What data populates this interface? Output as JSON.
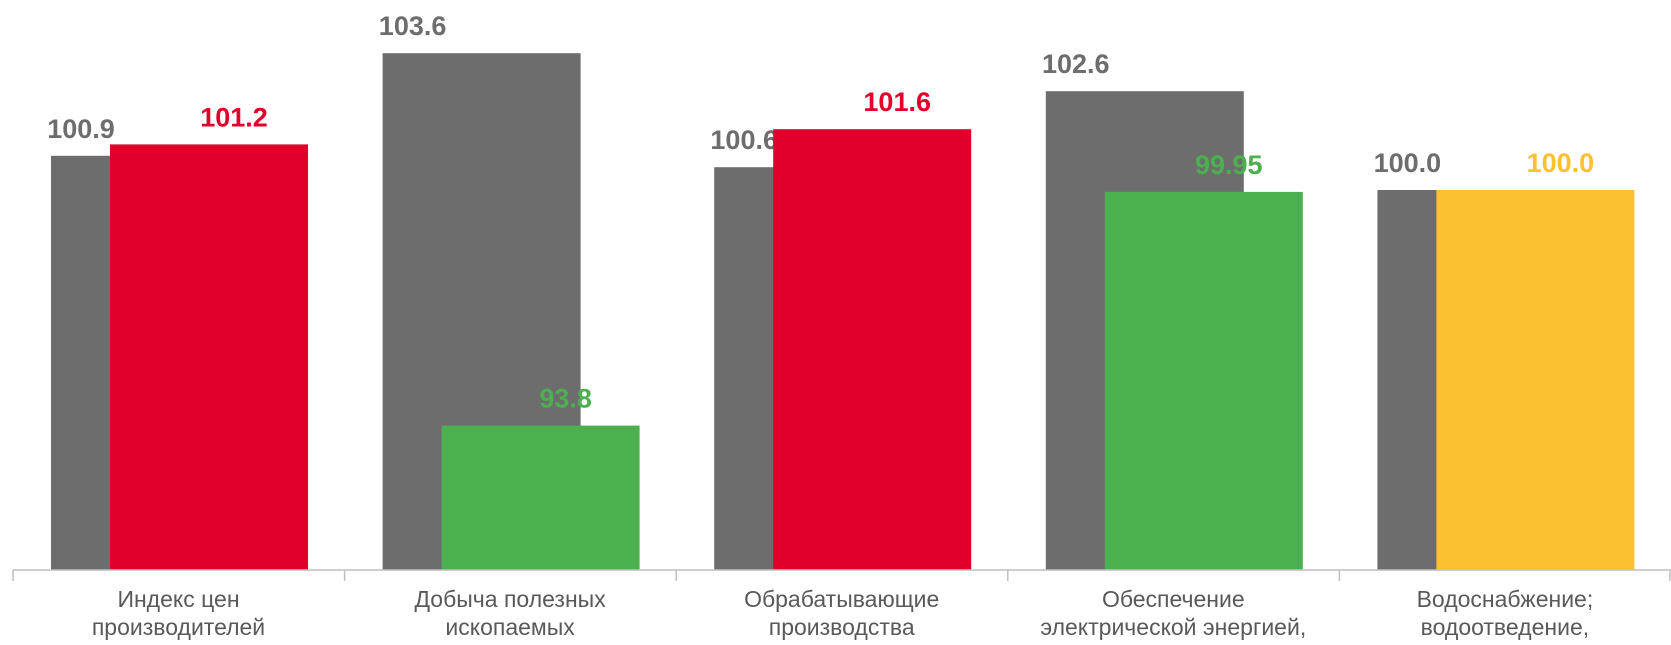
{
  "chart_data": {
    "type": "bar",
    "categories": [
      "Индекс цен\nпроизводителей",
      "Добыча полезных\nископаемых",
      "Обрабатывающие\nпроизводства",
      "Обеспечение\nэлектрической энергией,",
      "Водоснабжение;\nводоотведение,"
    ],
    "series": [
      {
        "color": "#6d6d6d",
        "values": [
          100.9,
          103.6,
          100.6,
          102.6,
          100.0
        ],
        "value_labels": [
          "100.9",
          "103.6",
          "100.6",
          "102.6",
          "100.0"
        ]
      },
      {
        "colors": [
          "#e0002a",
          "#4caf50",
          "#e0002a",
          "#4caf50",
          "#fcc12e"
        ],
        "values": [
          101.2,
          93.8,
          101.6,
          99.95,
          100.0
        ],
        "value_labels": [
          "101.2",
          "93.8",
          "101.6",
          "99.95",
          "100.0"
        ]
      }
    ],
    "ylim": [
      90,
      105
    ]
  }
}
